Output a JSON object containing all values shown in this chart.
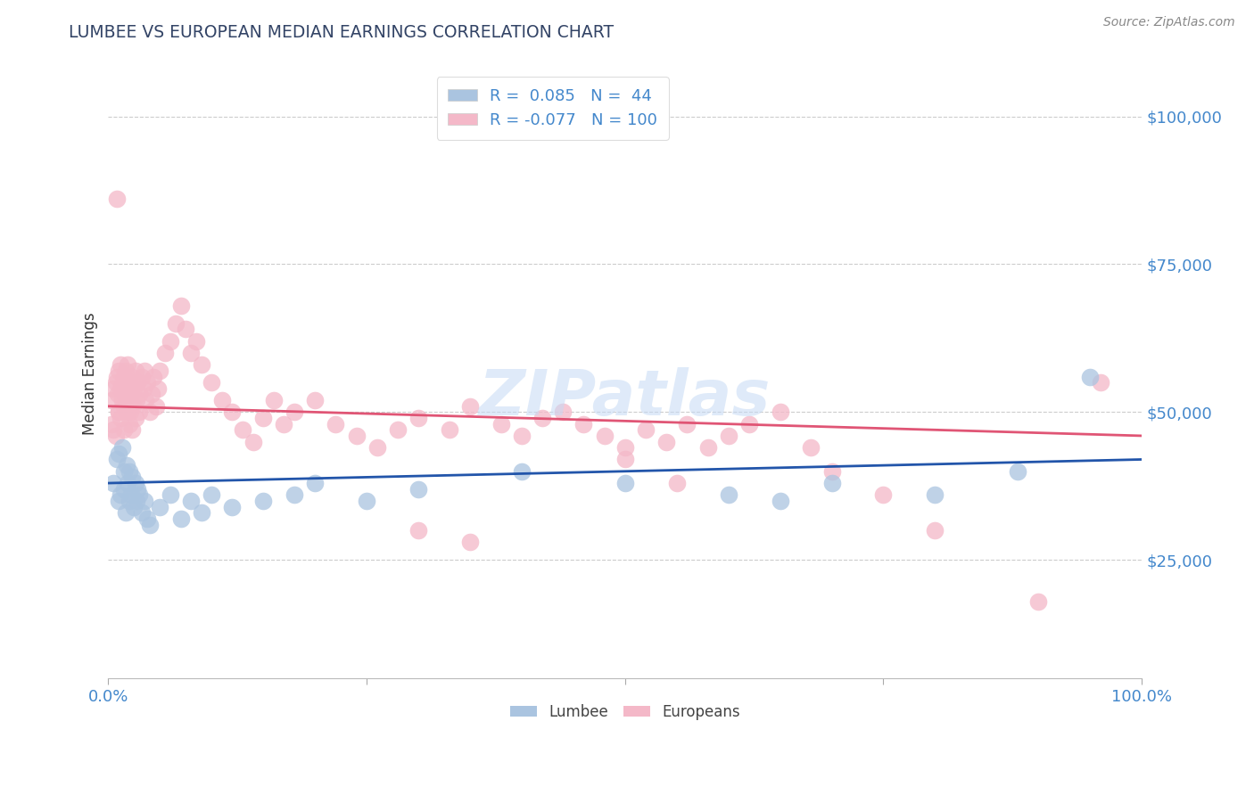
{
  "title": "LUMBEE VS EUROPEAN MEDIAN EARNINGS CORRELATION CHART",
  "source": "Source: ZipAtlas.com",
  "ylabel": "Median Earnings",
  "xlim": [
    0,
    1
  ],
  "ylim": [
    5000,
    108000
  ],
  "yticks": [
    25000,
    50000,
    75000,
    100000
  ],
  "ytick_labels": [
    "$25,000",
    "$50,000",
    "$75,000",
    "$100,000"
  ],
  "xtick_positions": [
    0,
    0.25,
    0.5,
    0.75,
    1.0
  ],
  "xtick_labels": [
    "0.0%",
    "",
    "",
    "",
    "100.0%"
  ],
  "grid_color": "#cccccc",
  "lumbee_color": "#aac4e0",
  "european_color": "#f4b8c8",
  "lumbee_line_color": "#2255aa",
  "european_line_color": "#e05575",
  "lumbee_R": 0.085,
  "lumbee_N": 44,
  "european_R": -0.077,
  "european_N": 100,
  "lumbee_line_x0": 0,
  "lumbee_line_y0": 38000,
  "lumbee_line_x1": 1,
  "lumbee_line_y1": 42000,
  "european_line_x0": 0,
  "european_line_y0": 51000,
  "european_line_x1": 1,
  "european_line_y1": 46000,
  "background_color": "#ffffff",
  "title_color": "#334466",
  "ylabel_color": "#333333",
  "tick_label_color": "#4488cc",
  "source_color": "#888888",
  "marker_size": 200,
  "lumbee_x": [
    0.005,
    0.008,
    0.01,
    0.01,
    0.012,
    0.013,
    0.015,
    0.015,
    0.017,
    0.018,
    0.019,
    0.02,
    0.02,
    0.022,
    0.023,
    0.025,
    0.026,
    0.027,
    0.028,
    0.03,
    0.032,
    0.035,
    0.038,
    0.04,
    0.05,
    0.06,
    0.07,
    0.08,
    0.09,
    0.1,
    0.12,
    0.15,
    0.18,
    0.2,
    0.25,
    0.3,
    0.4,
    0.5,
    0.6,
    0.65,
    0.7,
    0.8,
    0.88,
    0.95
  ],
  "lumbee_y": [
    38000,
    42000,
    35000,
    43000,
    36000,
    44000,
    37000,
    40000,
    33000,
    41000,
    38000,
    35000,
    40000,
    36000,
    39000,
    34000,
    38000,
    35000,
    37000,
    36000,
    33000,
    35000,
    32000,
    31000,
    34000,
    36000,
    32000,
    35000,
    33000,
    36000,
    34000,
    35000,
    36000,
    38000,
    35000,
    37000,
    40000,
    38000,
    36000,
    35000,
    38000,
    36000,
    40000,
    56000
  ],
  "european_x": [
    0.003,
    0.005,
    0.007,
    0.008,
    0.009,
    0.01,
    0.01,
    0.012,
    0.012,
    0.013,
    0.014,
    0.015,
    0.015,
    0.016,
    0.017,
    0.018,
    0.019,
    0.02,
    0.02,
    0.021,
    0.022,
    0.023,
    0.024,
    0.025,
    0.026,
    0.027,
    0.028,
    0.03,
    0.03,
    0.032,
    0.034,
    0.035,
    0.036,
    0.038,
    0.04,
    0.042,
    0.044,
    0.046,
    0.048,
    0.05,
    0.055,
    0.06,
    0.065,
    0.07,
    0.075,
    0.08,
    0.085,
    0.09,
    0.1,
    0.11,
    0.12,
    0.13,
    0.14,
    0.15,
    0.16,
    0.17,
    0.18,
    0.2,
    0.22,
    0.24,
    0.26,
    0.28,
    0.3,
    0.33,
    0.35,
    0.38,
    0.4,
    0.42,
    0.44,
    0.46,
    0.48,
    0.5,
    0.52,
    0.54,
    0.56,
    0.58,
    0.6,
    0.62,
    0.65,
    0.68,
    0.003,
    0.005,
    0.007,
    0.01,
    0.012,
    0.015,
    0.018,
    0.02,
    0.023,
    0.026,
    0.008,
    0.3,
    0.35,
    0.5,
    0.55,
    0.7,
    0.75,
    0.8,
    0.9,
    0.96
  ],
  "european_y": [
    52000,
    54000,
    55000,
    56000,
    53000,
    50000,
    57000,
    54000,
    58000,
    52000,
    55000,
    51000,
    56000,
    53000,
    57000,
    54000,
    58000,
    52000,
    55000,
    50000,
    53000,
    56000,
    51000,
    54000,
    57000,
    52000,
    55000,
    50000,
    53000,
    56000,
    54000,
    57000,
    52000,
    55000,
    50000,
    53000,
    56000,
    51000,
    54000,
    57000,
    60000,
    62000,
    65000,
    68000,
    64000,
    60000,
    62000,
    58000,
    55000,
    52000,
    50000,
    47000,
    45000,
    49000,
    52000,
    48000,
    50000,
    52000,
    48000,
    46000,
    44000,
    47000,
    49000,
    47000,
    51000,
    48000,
    46000,
    49000,
    50000,
    48000,
    46000,
    44000,
    47000,
    45000,
    48000,
    44000,
    46000,
    48000,
    50000,
    44000,
    48000,
    47000,
    46000,
    50000,
    49000,
    47000,
    50000,
    48000,
    47000,
    49000,
    86000,
    30000,
    28000,
    42000,
    38000,
    40000,
    36000,
    30000,
    18000,
    55000
  ]
}
